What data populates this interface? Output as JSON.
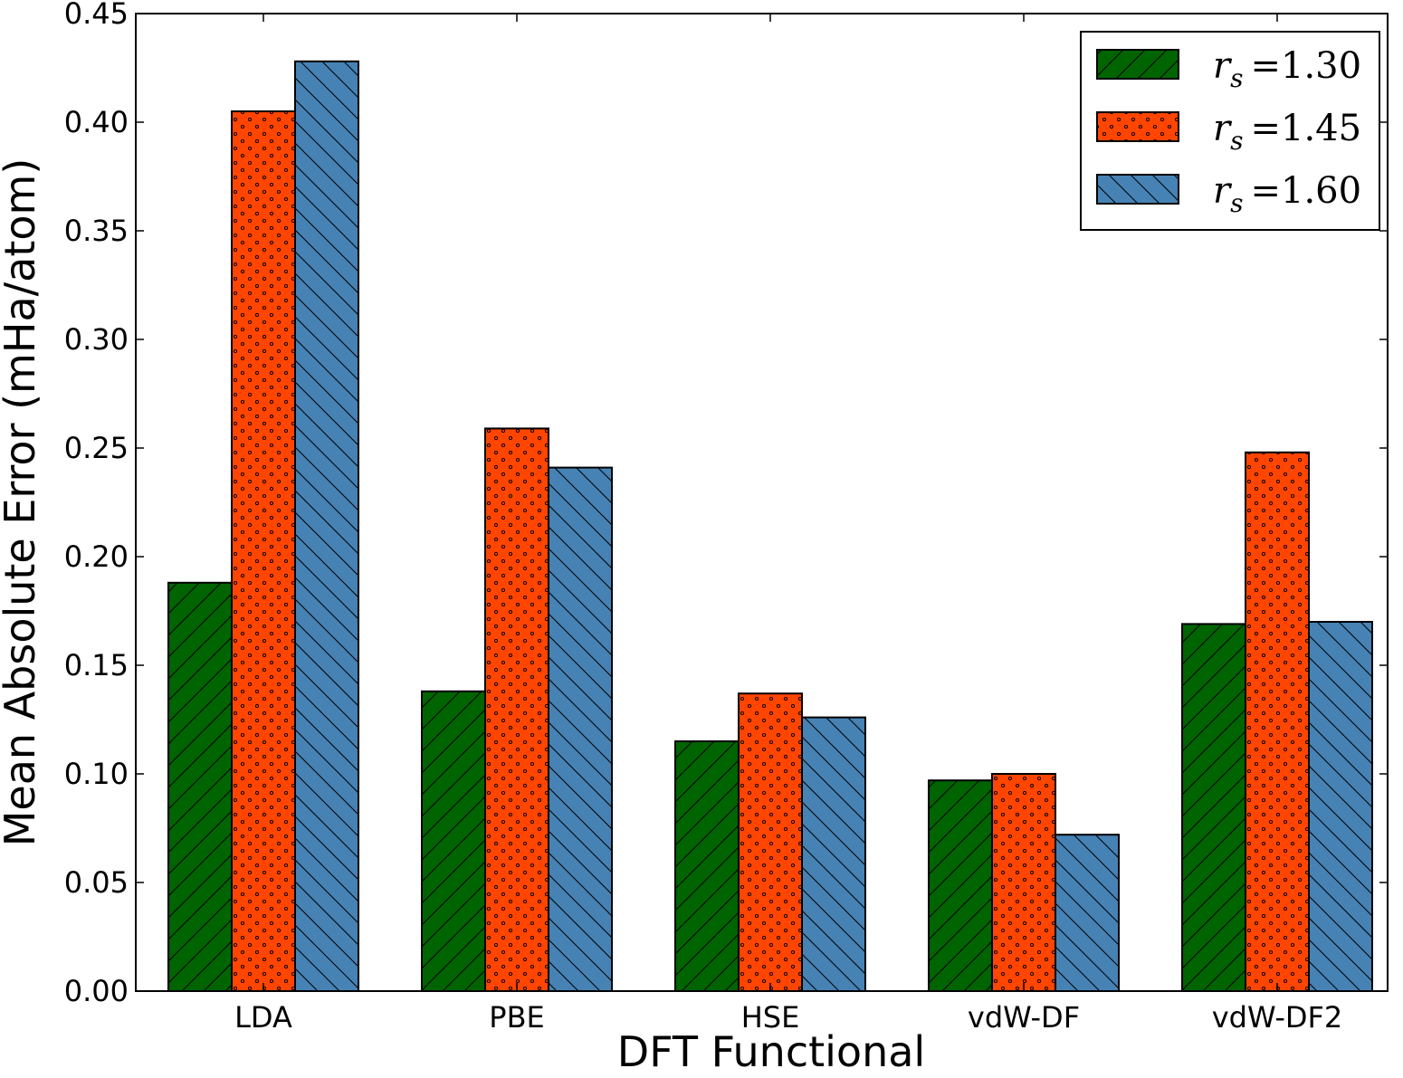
{
  "chart_data": {
    "type": "bar",
    "xlabel": "DFT Functional",
    "ylabel": "Mean Absolute Error (mHa/atom)",
    "categories": [
      "LDA",
      "PBE",
      "HSE",
      "vdW-DF",
      "vdW-DF2"
    ],
    "ylim": [
      0,
      0.45
    ],
    "yticks": [
      "0.00",
      "0.05",
      "0.10",
      "0.15",
      "0.20",
      "0.25",
      "0.30",
      "0.35",
      "0.40",
      "0.45"
    ],
    "legend_placement": "top-right",
    "series": [
      {
        "name": "r_s = 1.30",
        "legend_var": "r",
        "legend_sub": "s",
        "legend_eq": "=",
        "legend_val": "1.30",
        "color": "#006400",
        "hatch": "forward-diagonal",
        "values": [
          0.188,
          0.138,
          0.115,
          0.097,
          0.169
        ]
      },
      {
        "name": "r_s = 1.45",
        "legend_var": "r",
        "legend_sub": "s",
        "legend_eq": "=",
        "legend_val": "1.45",
        "color": "#ff4500",
        "hatch": "dots",
        "values": [
          0.405,
          0.259,
          0.137,
          0.1,
          0.248
        ]
      },
      {
        "name": "r_s = 1.60",
        "legend_var": "r",
        "legend_sub": "s",
        "legend_eq": "=",
        "legend_val": "1.60",
        "color": "#4682b4",
        "hatch": "back-diagonal",
        "values": [
          0.428,
          0.241,
          0.126,
          0.072,
          0.17
        ]
      }
    ]
  }
}
